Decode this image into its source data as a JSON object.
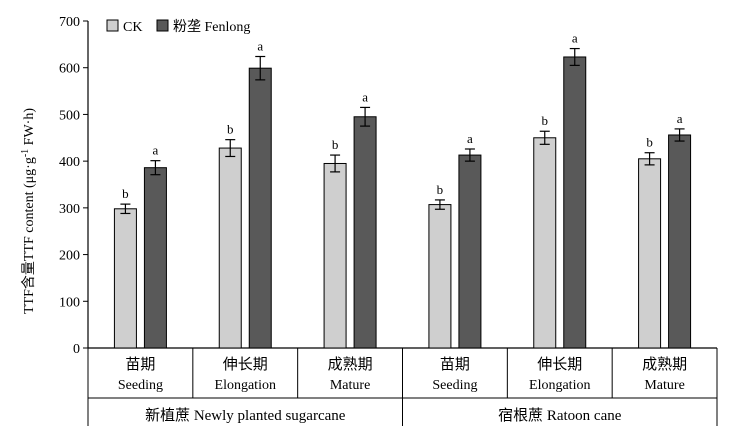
{
  "chart_data": {
    "type": "bar",
    "ylabel_zh": "TTF含量",
    "ylabel_en": "TTF content (μg·g",
    "ylabel_sup": "-1",
    "ylabel_tail": " FW·h)",
    "ylim": [
      0,
      700
    ],
    "yticks": [
      "0",
      "100",
      "200",
      "300",
      "400",
      "500",
      "600",
      "700"
    ],
    "legend": [
      {
        "label": "CK",
        "color": "#cfcfcf"
      },
      {
        "label": "粉垄 Fenlong",
        "color": "#595959"
      }
    ],
    "groups": [
      {
        "label": "新植蔗 Newly planted sugarcane",
        "categories": [
          {
            "zh": "苗期",
            "en": "Seeding"
          },
          {
            "zh": "伸长期",
            "en": "Elongation"
          },
          {
            "zh": "成熟期",
            "en": "Mature"
          }
        ]
      },
      {
        "label": "宿根蔗 Ratoon cane",
        "categories": [
          {
            "zh": "苗期",
            "en": "Seeding"
          },
          {
            "zh": "伸长期",
            "en": "Elongation"
          },
          {
            "zh": "成熟期",
            "en": "Mature"
          }
        ]
      }
    ],
    "series": [
      {
        "name": "CK",
        "color": "#cfcfcf",
        "values": [
          298,
          428,
          395,
          307,
          450,
          405
        ],
        "errors": [
          10,
          18,
          18,
          10,
          14,
          13
        ],
        "letters": [
          "b",
          "b",
          "b",
          "b",
          "b",
          "b"
        ]
      },
      {
        "name": "粉垄 Fenlong",
        "color": "#595959",
        "values": [
          386,
          599,
          495,
          413,
          623,
          456
        ],
        "errors": [
          15,
          25,
          20,
          13,
          18,
          13
        ],
        "letters": [
          "a",
          "a",
          "a",
          "a",
          "a",
          "a"
        ]
      }
    ]
  }
}
